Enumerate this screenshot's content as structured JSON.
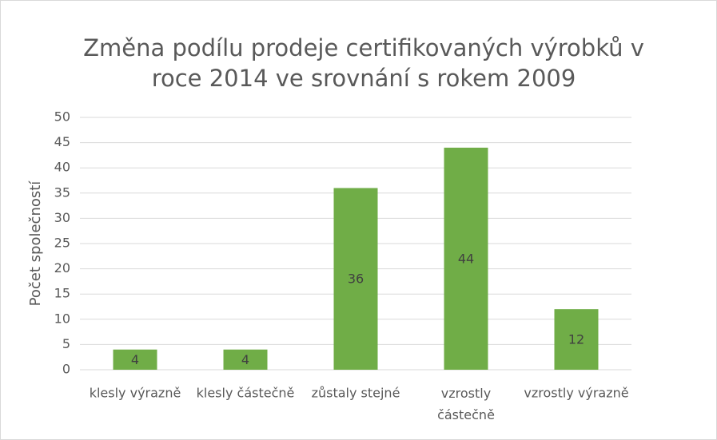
{
  "chart_data": {
    "type": "bar",
    "title": "Změna podílu prodeje certifikovaných výrobků v roce 2014 ve srovnání s rokem 2009",
    "y_axis_label": "Počet společností",
    "categories": [
      "klesly výrazně",
      "klesly částečně",
      "zůstaly stejné",
      "vzrostly částečně",
      "vzrostly výrazně"
    ],
    "values": [
      4,
      4,
      36,
      44,
      12
    ],
    "color": "#70ad47",
    "ylim": [
      0,
      50
    ],
    "yticks": [
      0,
      5,
      10,
      15,
      20,
      25,
      30,
      35,
      40,
      45,
      50
    ],
    "grid": true
  }
}
